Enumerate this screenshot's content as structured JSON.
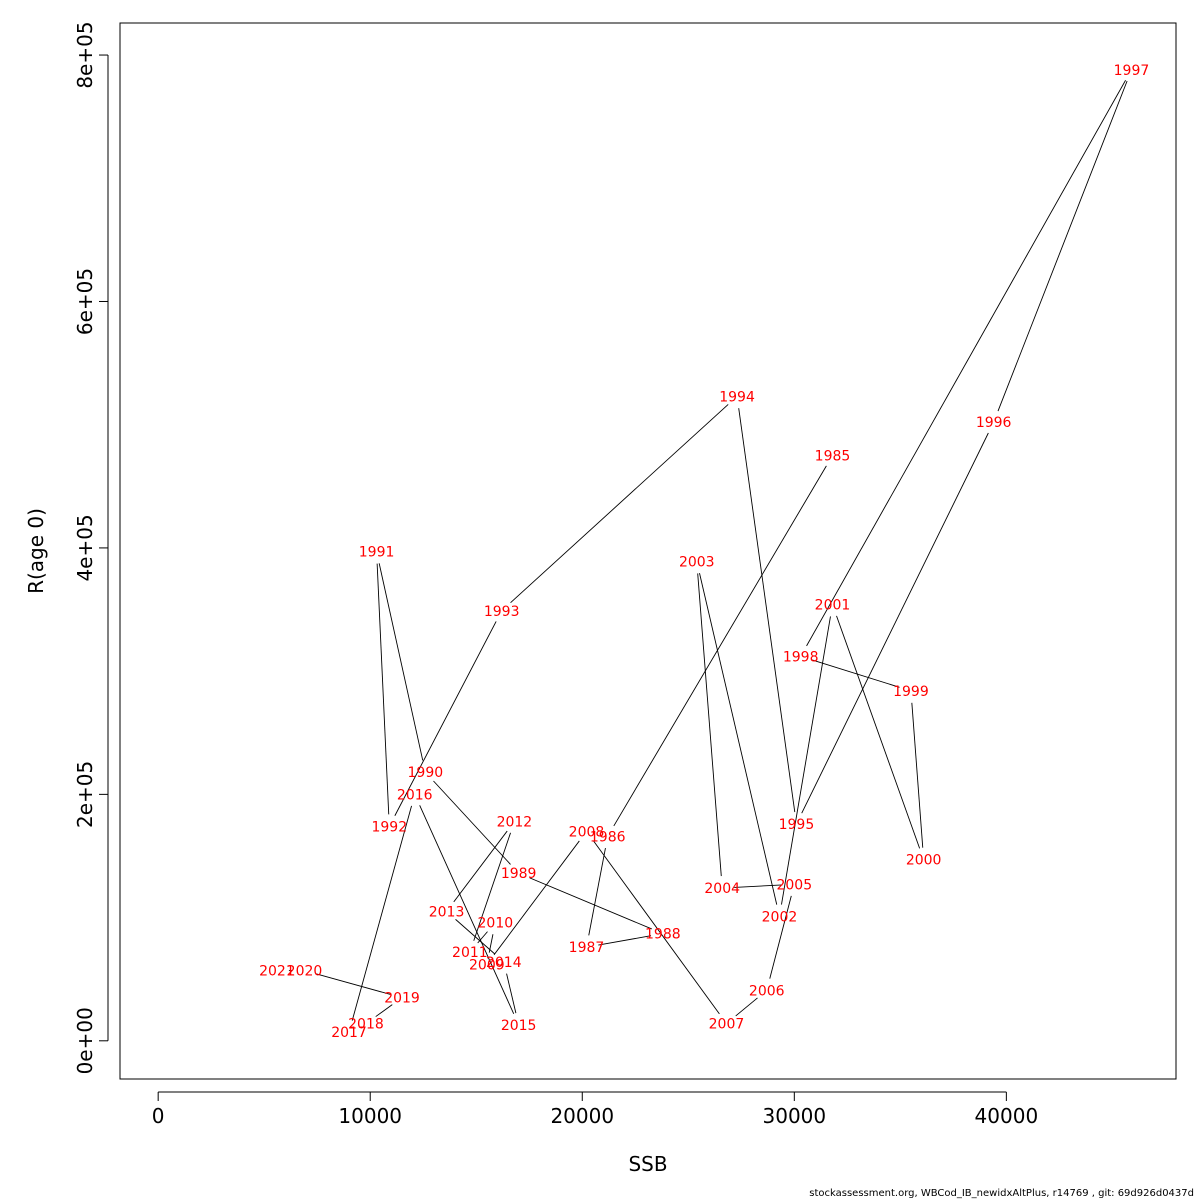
{
  "chart_data": {
    "type": "line",
    "subtype": "connected-scatter",
    "xlabel": "SSB",
    "ylabel": "R(age 0)",
    "xlim": [
      -1800,
      48000
    ],
    "ylim": [
      -31000,
      826000
    ],
    "xticks": [
      0,
      10000,
      20000,
      30000,
      40000
    ],
    "xtick_labels": [
      "0",
      "10000",
      "20000",
      "30000",
      "40000"
    ],
    "yticks": [
      0,
      200000,
      400000,
      600000,
      800000
    ],
    "ytick_labels": [
      "0e+00",
      "2e+05",
      "4e+05",
      "6e+05",
      "8e+05"
    ],
    "grid": false,
    "line_color": "#000000",
    "label_color": "#ff0000",
    "points": [
      {
        "year": "1985",
        "x": 31800,
        "y": 475000
      },
      {
        "year": "1986",
        "x": 21200,
        "y": 166000
      },
      {
        "year": "1987",
        "x": 20200,
        "y": 76000
      },
      {
        "year": "1988",
        "x": 23800,
        "y": 87000
      },
      {
        "year": "1989",
        "x": 17000,
        "y": 136000
      },
      {
        "year": "1990",
        "x": 12600,
        "y": 218000
      },
      {
        "year": "1991",
        "x": 10300,
        "y": 397000
      },
      {
        "year": "1992",
        "x": 10900,
        "y": 174000
      },
      {
        "year": "1993",
        "x": 16200,
        "y": 349000
      },
      {
        "year": "1994",
        "x": 27300,
        "y": 523000
      },
      {
        "year": "1995",
        "x": 30100,
        "y": 176000
      },
      {
        "year": "1996",
        "x": 39400,
        "y": 502000
      },
      {
        "year": "1997",
        "x": 45900,
        "y": 788000
      },
      {
        "year": "1998",
        "x": 30300,
        "y": 312000
      },
      {
        "year": "1999",
        "x": 35500,
        "y": 284000
      },
      {
        "year": "2000",
        "x": 36100,
        "y": 147000
      },
      {
        "year": "2001",
        "x": 31800,
        "y": 354000
      },
      {
        "year": "2002",
        "x": 29300,
        "y": 101000
      },
      {
        "year": "2003",
        "x": 25400,
        "y": 389000
      },
      {
        "year": "2004",
        "x": 26600,
        "y": 124000
      },
      {
        "year": "2005",
        "x": 30000,
        "y": 127000
      },
      {
        "year": "2006",
        "x": 28700,
        "y": 41000
      },
      {
        "year": "2007",
        "x": 26800,
        "y": 14000
      },
      {
        "year": "2008",
        "x": 20200,
        "y": 170000
      },
      {
        "year": "2009",
        "x": 15500,
        "y": 62000
      },
      {
        "year": "2010",
        "x": 15900,
        "y": 96000
      },
      {
        "year": "2011",
        "x": 14700,
        "y": 72000
      },
      {
        "year": "2012",
        "x": 16800,
        "y": 178000
      },
      {
        "year": "2013",
        "x": 13600,
        "y": 105000
      },
      {
        "year": "2014",
        "x": 16300,
        "y": 64000
      },
      {
        "year": "2015",
        "x": 17000,
        "y": 13000
      },
      {
        "year": "2016",
        "x": 12100,
        "y": 200000
      },
      {
        "year": "2017",
        "x": 9000,
        "y": 7000
      },
      {
        "year": "2018",
        "x": 9800,
        "y": 14000
      },
      {
        "year": "2019",
        "x": 11500,
        "y": 35000
      },
      {
        "year": "2020",
        "x": 6900,
        "y": 57000
      },
      {
        "year": "2021",
        "x": 5600,
        "y": 57000
      }
    ]
  },
  "footer": {
    "text": "stockassessment.org, WBCod_IB_newidxAltPlus, r14769 , git: 69d926d0437d"
  }
}
